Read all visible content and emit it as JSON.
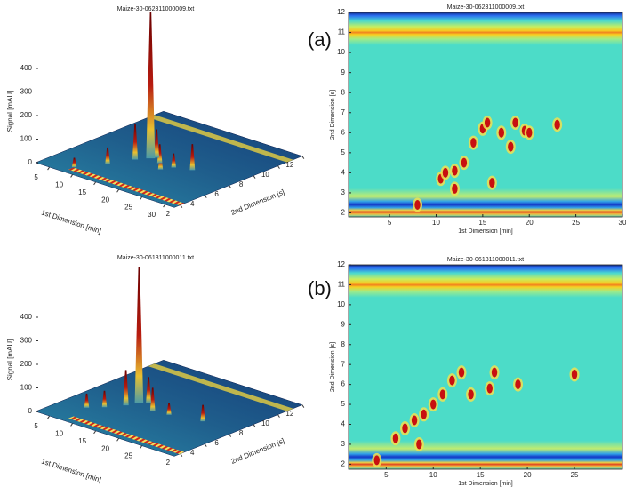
{
  "panel_labels": [
    "(a)",
    "(b)"
  ],
  "chart_data": [
    {
      "type": "surface",
      "title": "Maize-30-062311000009.txt",
      "xlabel": "1st Dimension [min]",
      "ylabel": "2nd Dimension [s]",
      "zlabel": "Signal [mAU]",
      "xlim": [
        2,
        32
      ],
      "ylim": [
        1.5,
        12
      ],
      "xticks": [
        5,
        10,
        15,
        20,
        25,
        30
      ],
      "yticks": [
        2,
        4,
        6,
        8,
        10,
        12
      ],
      "zticks": [
        0,
        100,
        200,
        300,
        400
      ],
      "peaks": {
        "x": [
          8,
          11,
          19,
          13,
          17,
          20,
          23,
          15,
          14.5
        ],
        "y": [
          2.4,
          4,
          5.3,
          5.5,
          6,
          6,
          6.4,
          6.5,
          6.2
        ],
        "z": [
          40,
          70,
          60,
          150,
          80,
          60,
          110,
          120,
          620
        ]
      }
    },
    {
      "type": "heatmap",
      "title": "Maize-30-062311000009.txt",
      "xlabel": "1st Dimension [min]",
      "ylabel": "2nd Dimension [s]",
      "xlim": [
        0.6,
        30
      ],
      "ylim": [
        1.8,
        12
      ],
      "xticks": [
        5,
        10,
        15,
        20,
        25,
        30
      ],
      "yticks": [
        2,
        3,
        4,
        5,
        6,
        7,
        8,
        9,
        10,
        11,
        12
      ],
      "peaks": {
        "x": [
          8,
          10.5,
          11,
          12,
          13,
          14,
          15,
          15.5,
          17,
          18,
          18.5,
          19.5,
          20,
          23,
          12,
          16
        ],
        "y": [
          2.4,
          3.7,
          4,
          4.1,
          4.5,
          5.5,
          6.2,
          6.5,
          6,
          5.3,
          6.5,
          6.1,
          6,
          6.4,
          3.2,
          3.5
        ]
      }
    },
    {
      "type": "surface",
      "title": "Maize-30-061311000011.txt",
      "xlabel": "1st Dimension [min]",
      "ylabel": "2nd Dimension [s]",
      "zlabel": "Signal [mAU]",
      "xlim": [
        2,
        32
      ],
      "ylim": [
        1.5,
        12
      ],
      "xticks": [
        5,
        10,
        15,
        20,
        25
      ],
      "yticks": [
        2,
        4,
        6,
        8,
        10,
        12
      ],
      "zticks": [
        0,
        100,
        200,
        300,
        400
      ],
      "peaks": {
        "x": [
          7,
          9,
          11,
          16,
          19,
          13,
          25,
          12
        ],
        "y": [
          3.8,
          4.5,
          5.5,
          5.8,
          6,
          6.6,
          6.5,
          6.2
        ],
        "z": [
          60,
          70,
          150,
          100,
          50,
          110,
          70,
          580
        ]
      }
    },
    {
      "type": "heatmap",
      "title": "Maize-30-061311000011.txt",
      "xlabel": "1st Dimension [min]",
      "ylabel": "2nd Dimension [s]",
      "xlim": [
        1,
        30.1
      ],
      "ylim": [
        1.75,
        12
      ],
      "xticks": [
        5,
        10,
        15,
        20,
        25
      ],
      "yticks": [
        2,
        3,
        4,
        5,
        6,
        7,
        8,
        9,
        10,
        11,
        12
      ],
      "peaks": {
        "x": [
          4,
          6,
          7,
          8,
          9,
          10,
          11,
          12,
          13,
          14,
          16,
          16.5,
          19,
          25,
          8.5
        ],
        "y": [
          2.2,
          3.3,
          3.8,
          4.2,
          4.5,
          5,
          5.5,
          6.2,
          6.6,
          5.5,
          5.8,
          6.6,
          6,
          6.5,
          3
        ]
      }
    }
  ]
}
